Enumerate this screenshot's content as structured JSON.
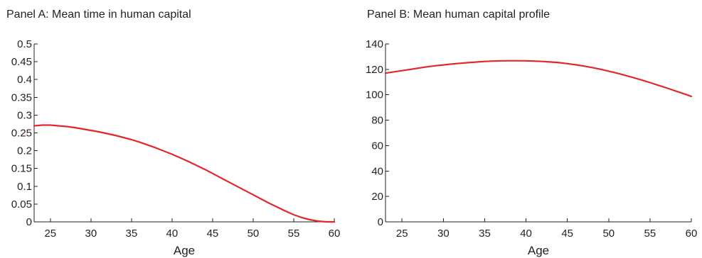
{
  "chart_data": [
    {
      "type": "line",
      "title": "Panel A: Mean time in human capital",
      "xlabel": "Age",
      "ylabel": "",
      "xlim": [
        23,
        60
      ],
      "ylim": [
        0,
        0.5
      ],
      "xticks": [
        25,
        30,
        35,
        40,
        45,
        50,
        55,
        60
      ],
      "xtick_labels": [
        "25",
        "30",
        "35",
        "40",
        "45",
        "50",
        "55",
        "60"
      ],
      "yticks": [
        0,
        0.05,
        0.1,
        0.15,
        0.2,
        0.25,
        0.3,
        0.35,
        0.4,
        0.45,
        0.5
      ],
      "ytick_labels": [
        "0",
        "0.05",
        "0.1",
        "0.15",
        "0.2",
        "0.25",
        "0.3",
        "0.35",
        "0.4",
        "0.45",
        "0.5"
      ],
      "grid": false,
      "color": "#e3262b",
      "x": [
        23,
        24,
        25,
        26,
        27,
        28,
        29,
        30,
        31,
        32,
        33,
        34,
        35,
        36,
        37,
        38,
        39,
        40,
        41,
        42,
        43,
        44,
        45,
        46,
        47,
        48,
        49,
        50,
        51,
        52,
        53,
        54,
        55,
        56,
        57,
        58,
        59,
        60
      ],
      "y": [
        0.27,
        0.272,
        0.272,
        0.27,
        0.268,
        0.265,
        0.261,
        0.257,
        0.253,
        0.248,
        0.243,
        0.237,
        0.231,
        0.224,
        0.216,
        0.208,
        0.199,
        0.19,
        0.18,
        0.17,
        0.159,
        0.148,
        0.136,
        0.124,
        0.112,
        0.1,
        0.088,
        0.076,
        0.064,
        0.052,
        0.041,
        0.03,
        0.02,
        0.012,
        0.006,
        0.002,
        0.0,
        0.0
      ]
    },
    {
      "type": "line",
      "title": "Panel B: Mean human capital profile",
      "xlabel": "Age",
      "ylabel": "",
      "xlim": [
        23,
        60
      ],
      "ylim": [
        0,
        140
      ],
      "xticks": [
        25,
        30,
        35,
        40,
        45,
        50,
        55,
        60
      ],
      "xtick_labels": [
        "25",
        "30",
        "35",
        "40",
        "45",
        "50",
        "55",
        "60"
      ],
      "yticks": [
        0,
        20,
        40,
        60,
        80,
        100,
        120,
        140
      ],
      "ytick_labels": [
        "0",
        "20",
        "40",
        "60",
        "80",
        "100",
        "120",
        "140"
      ],
      "grid": false,
      "color": "#e3262b",
      "x": [
        23,
        24,
        25,
        26,
        27,
        28,
        29,
        30,
        31,
        32,
        33,
        34,
        35,
        36,
        37,
        38,
        39,
        40,
        41,
        42,
        43,
        44,
        45,
        46,
        47,
        48,
        49,
        50,
        51,
        52,
        53,
        54,
        55,
        56,
        57,
        58,
        59,
        60
      ],
      "y": [
        117,
        118,
        119,
        120,
        121,
        122,
        122.8,
        123.5,
        124.2,
        124.8,
        125.3,
        125.8,
        126.2,
        126.5,
        126.7,
        126.8,
        126.8,
        126.7,
        126.5,
        126.2,
        125.8,
        125.3,
        124.5,
        123.6,
        122.6,
        121.4,
        120.1,
        118.6,
        117.0,
        115.3,
        113.5,
        111.6,
        109.6,
        107.5,
        105.4,
        103.2,
        101.0,
        98.8
      ]
    }
  ]
}
